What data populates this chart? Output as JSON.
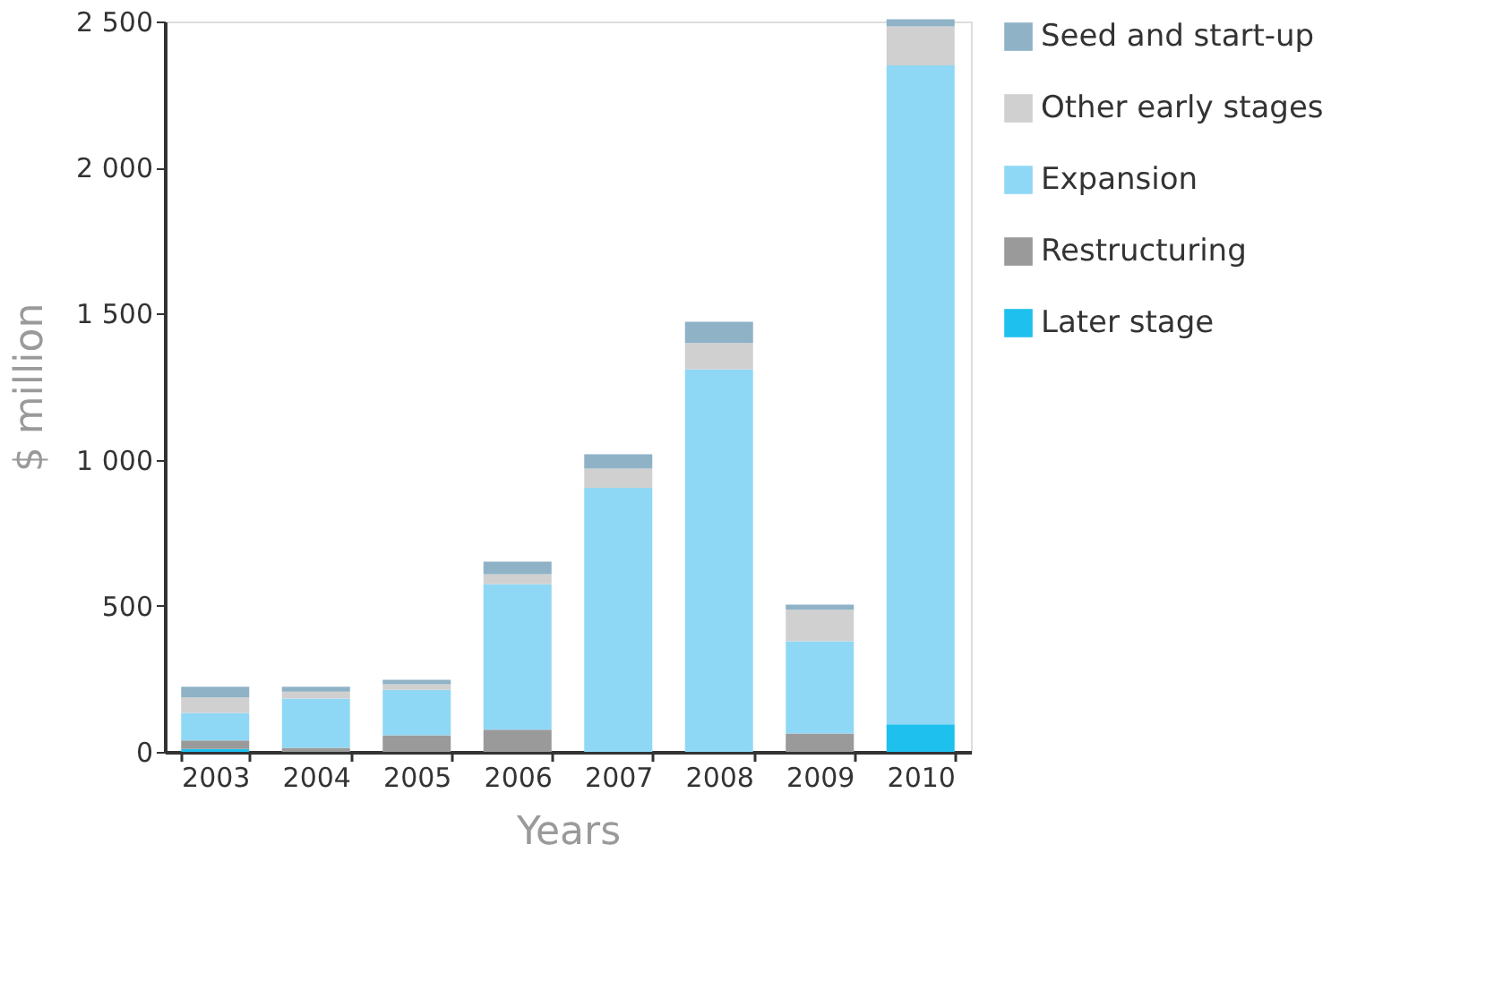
{
  "chart_data": {
    "type": "bar",
    "stacked": true,
    "xlabel": "Years",
    "ylabel": "$ million",
    "categories": [
      "2003",
      "2004",
      "2005",
      "2006",
      "2007",
      "2008",
      "2009",
      "2010"
    ],
    "series": [
      {
        "name": "Later stage",
        "color": "#1ec0ee",
        "values": [
          10,
          0,
          0,
          0,
          0,
          0,
          0,
          94
        ]
      },
      {
        "name": "Restructuring",
        "color": "#9a9a9a",
        "values": [
          29,
          14,
          57,
          76,
          0,
          0,
          63,
          0
        ]
      },
      {
        "name": "Expansion",
        "color": "#8fd8f5",
        "values": [
          94,
          168,
          155,
          498,
          904,
          1309,
          315,
          2256
        ]
      },
      {
        "name": "Other early stages",
        "color": "#d0d0d0",
        "values": [
          53,
          24,
          19,
          34,
          66,
          90,
          108,
          133
        ]
      },
      {
        "name": "Seed and start-up",
        "color": "#8fb2c6",
        "values": [
          37,
          17,
          16,
          43,
          49,
          73,
          18,
          25
        ]
      }
    ],
    "ylim": [
      0,
      2500
    ],
    "yticks": [
      0,
      {
        "value": 500,
        "label": "500"
      },
      {
        "value": 1000,
        "label": "1 000"
      },
      {
        "value": 1500,
        "label": "1 500"
      },
      {
        "value": 2000,
        "label": "2 000"
      },
      {
        "value": 2500,
        "label": "2 500"
      }
    ],
    "grid": false,
    "legend": "right"
  }
}
